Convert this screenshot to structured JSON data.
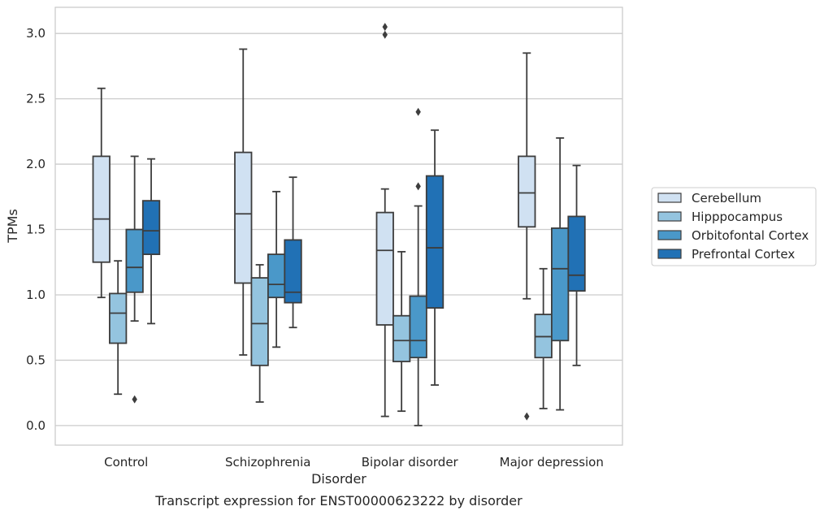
{
  "caption": "Transcript expression for ENST00000623222 by disorder",
  "chart_data": {
    "type": "box",
    "xlabel": "Disorder",
    "ylabel": "TPMs",
    "ylim": [
      -0.15,
      3.2
    ],
    "yticks": [
      0.0,
      0.5,
      1.0,
      1.5,
      2.0,
      2.5,
      3.0
    ],
    "ytick_labels": [
      "0.0",
      "0.5",
      "1.0",
      "1.5",
      "2.0",
      "2.5",
      "3.0"
    ],
    "grid": "horizontal",
    "legend_position": "right",
    "categories": [
      "Control",
      "Schizophrenia",
      "Bipolar disorder",
      "Major depression"
    ],
    "series": [
      {
        "name": "Cerebellum",
        "color": "#d0e1f2",
        "boxes": [
          {
            "whislo": 0.98,
            "q1": 1.25,
            "med": 1.58,
            "q3": 2.06,
            "whishi": 2.58,
            "fliers": []
          },
          {
            "whislo": 0.54,
            "q1": 1.09,
            "med": 1.62,
            "q3": 2.09,
            "whishi": 2.88,
            "fliers": []
          },
          {
            "whislo": 0.07,
            "q1": 0.77,
            "med": 1.34,
            "q3": 1.63,
            "whishi": 1.81,
            "fliers": [
              2.99,
              3.05
            ]
          },
          {
            "whislo": 0.97,
            "q1": 1.52,
            "med": 1.78,
            "q3": 2.06,
            "whishi": 2.85,
            "fliers": [
              0.07
            ]
          }
        ]
      },
      {
        "name": "Hipppocampus",
        "color": "#94c4df",
        "boxes": [
          {
            "whislo": 0.24,
            "q1": 0.63,
            "med": 0.86,
            "q3": 1.01,
            "whishi": 1.26,
            "fliers": []
          },
          {
            "whislo": 0.18,
            "q1": 0.46,
            "med": 0.78,
            "q3": 1.13,
            "whishi": 1.23,
            "fliers": []
          },
          {
            "whislo": 0.11,
            "q1": 0.49,
            "med": 0.65,
            "q3": 0.84,
            "whishi": 1.33,
            "fliers": []
          },
          {
            "whislo": 0.13,
            "q1": 0.52,
            "med": 0.68,
            "q3": 0.85,
            "whishi": 1.2,
            "fliers": []
          }
        ]
      },
      {
        "name": "Orbitofontal Cortex",
        "color": "#4a98c9",
        "boxes": [
          {
            "whislo": 0.8,
            "q1": 1.02,
            "med": 1.21,
            "q3": 1.5,
            "whishi": 2.06,
            "fliers": [
              0.2
            ]
          },
          {
            "whislo": 0.6,
            "q1": 0.98,
            "med": 1.08,
            "q3": 1.31,
            "whishi": 1.79,
            "fliers": []
          },
          {
            "whislo": 0.0,
            "q1": 0.52,
            "med": 0.65,
            "q3": 0.99,
            "whishi": 1.68,
            "fliers": [
              1.83,
              2.4
            ]
          },
          {
            "whislo": 0.12,
            "q1": 0.65,
            "med": 1.2,
            "q3": 1.51,
            "whishi": 2.2,
            "fliers": []
          }
        ]
      },
      {
        "name": "Prefrontal Cortex",
        "color": "#2171b5",
        "boxes": [
          {
            "whislo": 0.78,
            "q1": 1.31,
            "med": 1.49,
            "q3": 1.72,
            "whishi": 2.04,
            "fliers": []
          },
          {
            "whislo": 0.75,
            "q1": 0.94,
            "med": 1.02,
            "q3": 1.42,
            "whishi": 1.9,
            "fliers": []
          },
          {
            "whislo": 0.31,
            "q1": 0.9,
            "med": 1.36,
            "q3": 1.91,
            "whishi": 2.26,
            "fliers": []
          },
          {
            "whislo": 0.46,
            "q1": 1.03,
            "med": 1.15,
            "q3": 1.6,
            "whishi": 1.99,
            "fliers": []
          }
        ]
      }
    ]
  }
}
